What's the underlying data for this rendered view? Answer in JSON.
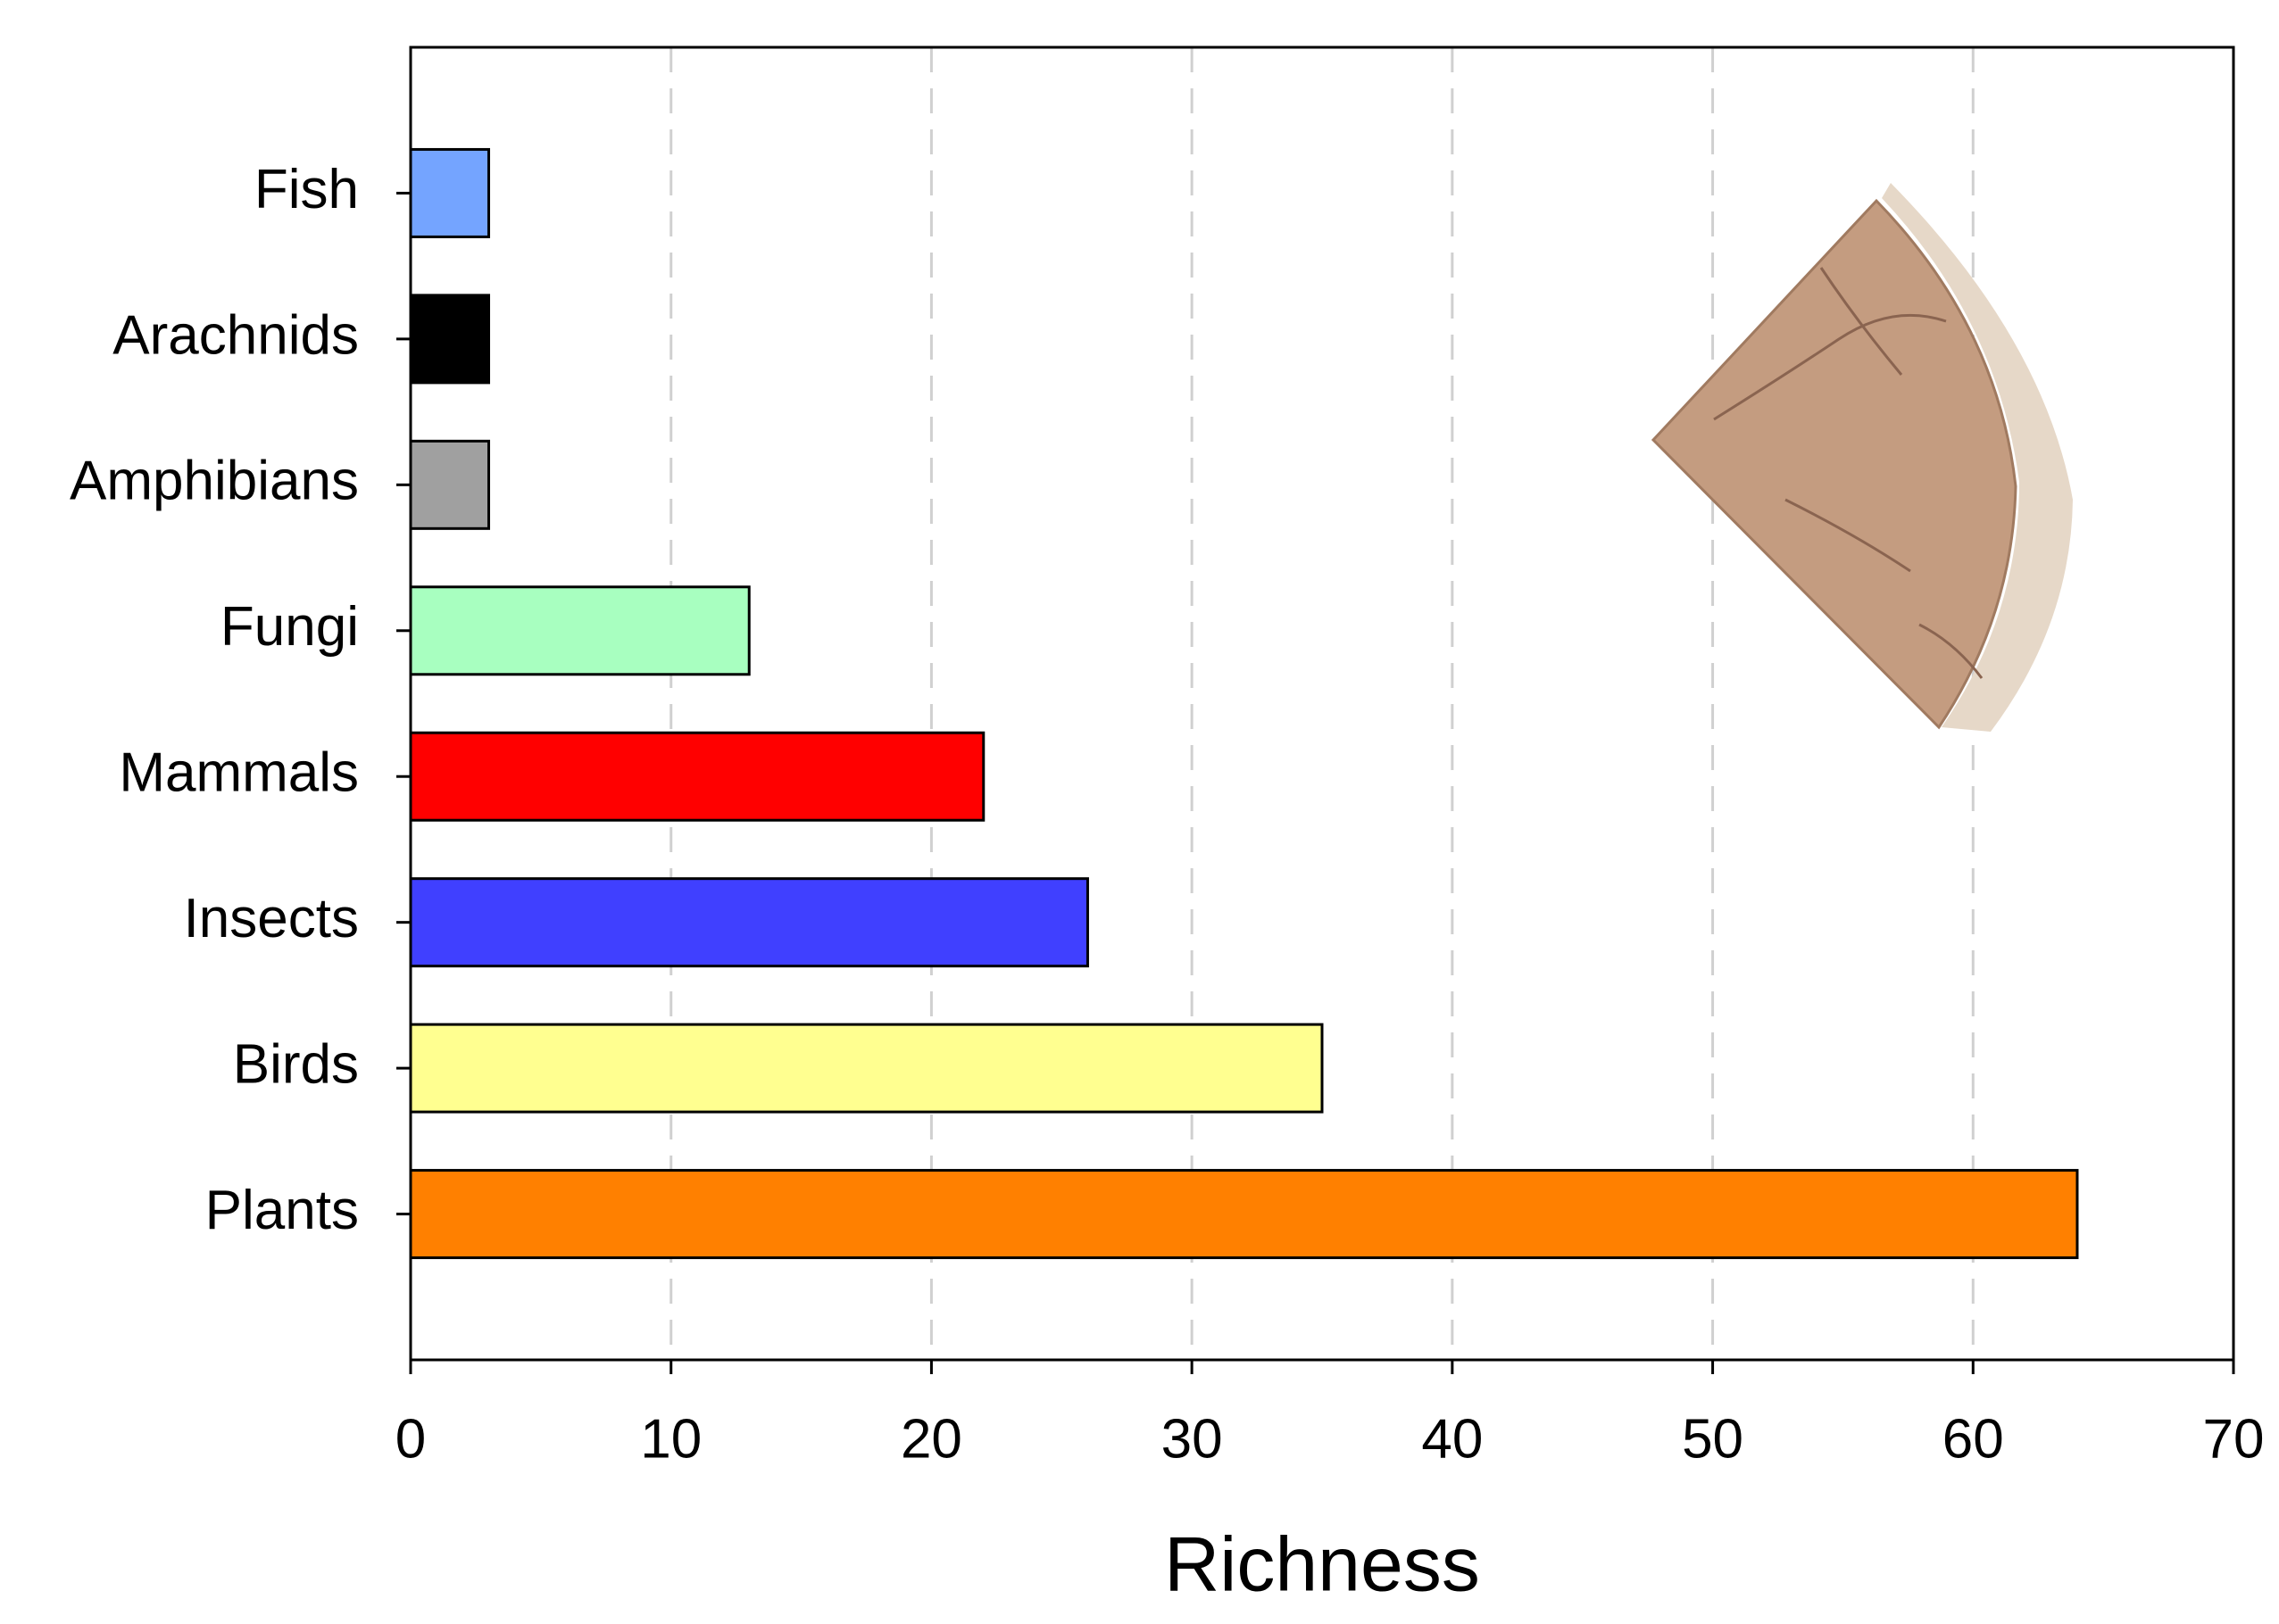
{
  "chart_data": {
    "type": "hbar",
    "x_label": "Richness",
    "categories": [
      "Fish",
      "Arachnids",
      "Amphibians",
      "Fungi",
      "Mammals",
      "Insects",
      "Birds",
      "Plants"
    ],
    "values": [
      3,
      3,
      3,
      13,
      22,
      26,
      35,
      64
    ],
    "colors": [
      "#74a4ff",
      "#000000",
      "#a0a0a0",
      "#a8ffc0",
      "#ff0000",
      "#4040ff",
      "#ffff90",
      "#ff8000"
    ],
    "xlim": [
      0,
      70
    ],
    "xticks": [
      0,
      10,
      20,
      30,
      40,
      50,
      60,
      70
    ],
    "grid": true
  }
}
